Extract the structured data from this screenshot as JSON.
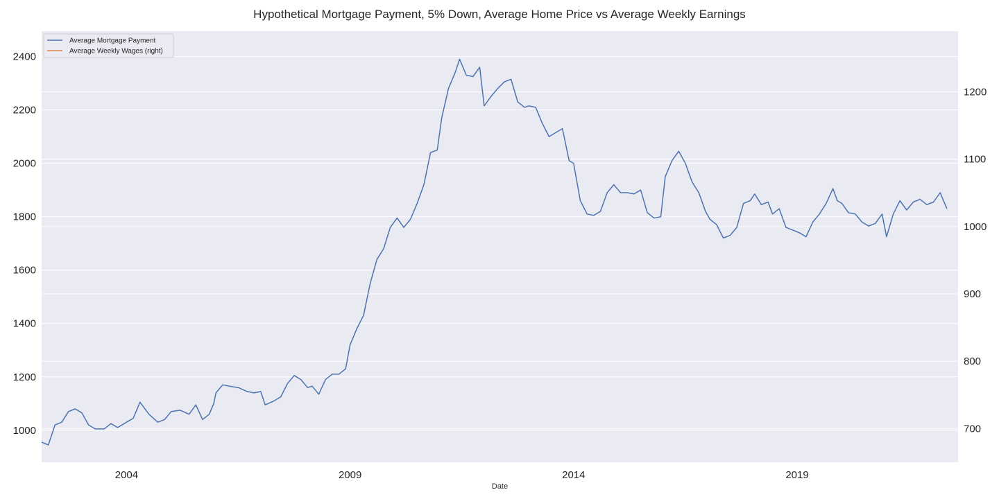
{
  "chart_data": {
    "type": "line",
    "title": "Hypothetical Mortgage Payment, 5% Down, Average Home Price vs Average Weekly Earnings",
    "xlabel": "Date",
    "x_tick_labels": [
      "2004",
      "2009",
      "2014",
      "2019"
    ],
    "x_tick_years": [
      2004,
      2009,
      2014,
      2019
    ],
    "xlim": [
      2002.1,
      2022.6
    ],
    "left_axis": {
      "ylim": [
        880,
        2495
      ],
      "ticks": [
        1000,
        1200,
        1400,
        1600,
        1800,
        2000,
        2200,
        2400
      ]
    },
    "right_axis": {
      "ylim": [
        650,
        1290
      ],
      "ticks": [
        700,
        800,
        900,
        1000,
        1100,
        1200
      ]
    },
    "grid": true,
    "legend_position": "top-left",
    "colors": {
      "mortgage": "#4c72b0",
      "wages": "#dd8452",
      "plot_bg": "#eaeaf2",
      "grid": "#ffffff"
    },
    "series": [
      {
        "name": "Average Mortgage Payment",
        "axis": "left",
        "points": [
          [
            2002.1,
            955
          ],
          [
            2002.25,
            945
          ],
          [
            2002.4,
            1020
          ],
          [
            2002.55,
            1030
          ],
          [
            2002.7,
            1070
          ],
          [
            2002.85,
            1080
          ],
          [
            2003.0,
            1065
          ],
          [
            2003.15,
            1020
          ],
          [
            2003.3,
            1005
          ],
          [
            2003.5,
            1005
          ],
          [
            2003.65,
            1025
          ],
          [
            2003.8,
            1010
          ],
          [
            2004.0,
            1030
          ],
          [
            2004.15,
            1045
          ],
          [
            2004.3,
            1105
          ],
          [
            2004.5,
            1060
          ],
          [
            2004.7,
            1030
          ],
          [
            2004.85,
            1040
          ],
          [
            2005.0,
            1070
          ],
          [
            2005.2,
            1075
          ],
          [
            2005.4,
            1060
          ],
          [
            2005.55,
            1095
          ],
          [
            2005.7,
            1040
          ],
          [
            2005.85,
            1060
          ],
          [
            2005.95,
            1100
          ],
          [
            2006.0,
            1140
          ],
          [
            2006.15,
            1170
          ],
          [
            2006.3,
            1165
          ],
          [
            2006.5,
            1160
          ],
          [
            2006.7,
            1145
          ],
          [
            2006.85,
            1140
          ],
          [
            2007.0,
            1145
          ],
          [
            2007.1,
            1095
          ],
          [
            2007.3,
            1110
          ],
          [
            2007.45,
            1125
          ],
          [
            2007.6,
            1175
          ],
          [
            2007.75,
            1205
          ],
          [
            2007.9,
            1190
          ],
          [
            2008.05,
            1160
          ],
          [
            2008.15,
            1165
          ],
          [
            2008.3,
            1135
          ],
          [
            2008.45,
            1190
          ],
          [
            2008.6,
            1210
          ],
          [
            2008.75,
            1210
          ],
          [
            2008.9,
            1230
          ],
          [
            2009.0,
            1320
          ],
          [
            2009.15,
            1380
          ],
          [
            2009.3,
            1430
          ],
          [
            2009.45,
            1550
          ],
          [
            2009.6,
            1640
          ],
          [
            2009.75,
            1680
          ],
          [
            2009.9,
            1760
          ],
          [
            2010.05,
            1795
          ],
          [
            2010.2,
            1760
          ],
          [
            2010.35,
            1790
          ],
          [
            2010.5,
            1850
          ],
          [
            2010.65,
            1920
          ],
          [
            2010.8,
            2040
          ],
          [
            2010.95,
            2050
          ],
          [
            2011.05,
            2170
          ],
          [
            2011.2,
            2280
          ],
          [
            2011.35,
            2340
          ],
          [
            2011.45,
            2390
          ],
          [
            2011.6,
            2330
          ],
          [
            2011.75,
            2325
          ],
          [
            2011.9,
            2360
          ],
          [
            2012.0,
            2215
          ],
          [
            2012.15,
            2250
          ],
          [
            2012.3,
            2280
          ],
          [
            2012.45,
            2305
          ],
          [
            2012.6,
            2315
          ],
          [
            2012.75,
            2230
          ],
          [
            2012.9,
            2210
          ],
          [
            2013.0,
            2215
          ],
          [
            2013.15,
            2210
          ],
          [
            2013.3,
            2150
          ],
          [
            2013.45,
            2100
          ],
          [
            2013.6,
            2115
          ],
          [
            2013.75,
            2130
          ],
          [
            2013.9,
            2010
          ],
          [
            2014.0,
            2000
          ],
          [
            2014.15,
            1860
          ],
          [
            2014.3,
            1810
          ],
          [
            2014.45,
            1805
          ],
          [
            2014.6,
            1820
          ],
          [
            2014.75,
            1890
          ],
          [
            2014.9,
            1920
          ],
          [
            2015.05,
            1890
          ],
          [
            2015.2,
            1890
          ],
          [
            2015.35,
            1885
          ],
          [
            2015.5,
            1900
          ],
          [
            2015.65,
            1815
          ],
          [
            2015.8,
            1795
          ],
          [
            2015.95,
            1800
          ],
          [
            2016.05,
            1950
          ],
          [
            2016.2,
            2010
          ],
          [
            2016.35,
            2045
          ],
          [
            2016.5,
            2000
          ],
          [
            2016.65,
            1930
          ],
          [
            2016.8,
            1890
          ],
          [
            2016.95,
            1820
          ],
          [
            2017.05,
            1790
          ],
          [
            2017.2,
            1770
          ],
          [
            2017.35,
            1720
          ],
          [
            2017.5,
            1730
          ],
          [
            2017.65,
            1760
          ],
          [
            2017.8,
            1850
          ],
          [
            2017.95,
            1860
          ],
          [
            2018.05,
            1885
          ],
          [
            2018.2,
            1845
          ],
          [
            2018.35,
            1855
          ],
          [
            2018.45,
            1810
          ],
          [
            2018.6,
            1830
          ],
          [
            2018.75,
            1760
          ],
          [
            2018.9,
            1750
          ],
          [
            2019.05,
            1740
          ],
          [
            2019.2,
            1725
          ],
          [
            2019.35,
            1780
          ],
          [
            2019.5,
            1810
          ],
          [
            2019.65,
            1850
          ],
          [
            2019.8,
            1905
          ],
          [
            2019.9,
            1860
          ],
          [
            2020.0,
            1850
          ],
          [
            2020.15,
            1815
          ],
          [
            2020.3,
            1810
          ],
          [
            2020.45,
            1780
          ],
          [
            2020.6,
            1765
          ],
          [
            2020.75,
            1775
          ],
          [
            2020.9,
            1810
          ],
          [
            2021.0,
            1725
          ],
          [
            2021.15,
            1810
          ],
          [
            2021.3,
            1860
          ],
          [
            2021.45,
            1825
          ],
          [
            2021.6,
            1855
          ],
          [
            2021.75,
            1865
          ],
          [
            2021.9,
            1845
          ],
          [
            2022.05,
            1855
          ],
          [
            2022.2,
            1890
          ],
          [
            2022.35,
            1830
          ]
        ]
      },
      {
        "name": "Average Weekly Wages (right)",
        "axis": "right",
        "points": []
      }
    ]
  }
}
